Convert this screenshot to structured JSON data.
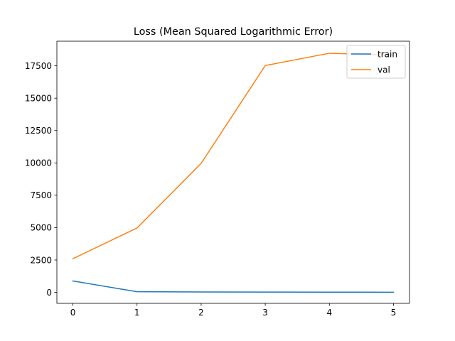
{
  "chart_data": {
    "type": "line",
    "title": "Loss (Mean Squared Logarithmic Error)",
    "xlabel": "",
    "ylabel": "",
    "x": [
      0,
      1,
      2,
      3,
      4,
      5
    ],
    "xlim": [
      -0.25,
      5.25
    ],
    "ylim": [
      -850,
      19400
    ],
    "xticks": [
      0,
      1,
      2,
      3,
      4,
      5
    ],
    "yticks": [
      0,
      2500,
      5000,
      7500,
      10000,
      12500,
      15000,
      17500
    ],
    "grid": false,
    "legend_position": "top-right",
    "series": [
      {
        "name": "train",
        "color": "#1f77b4",
        "values": [
          880,
          50,
          30,
          20,
          15,
          10
        ]
      },
      {
        "name": "val",
        "color": "#ff7f0e",
        "values": [
          2600,
          4970,
          9960,
          17520,
          18470,
          18320
        ]
      }
    ]
  }
}
